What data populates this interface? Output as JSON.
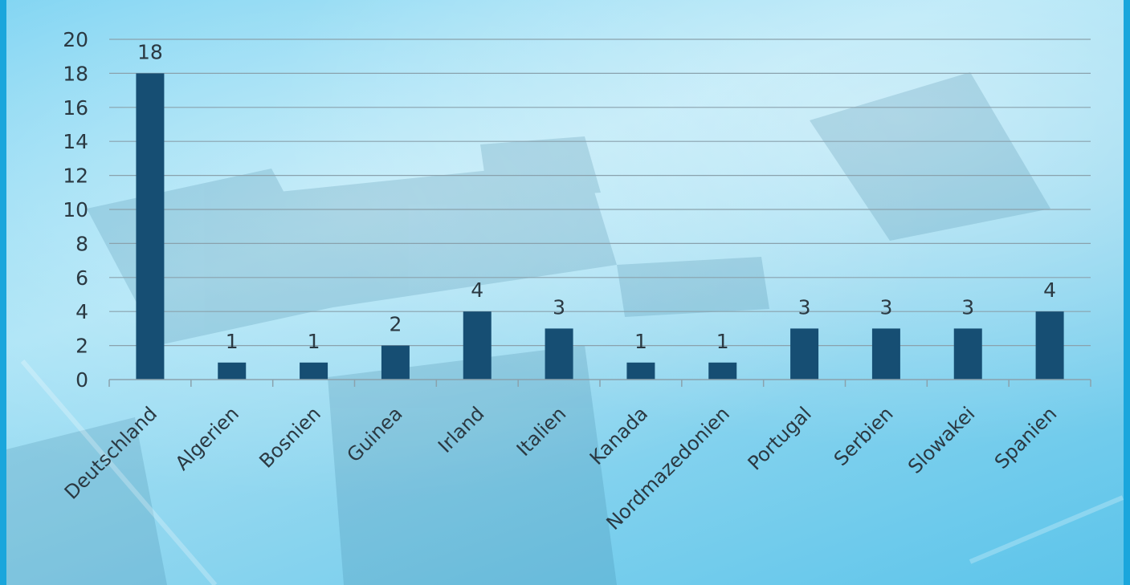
{
  "chart_data": {
    "type": "bar",
    "title": "",
    "xlabel": "",
    "ylabel": "",
    "categories": [
      "Deutschland",
      "Algerien",
      "Bosnien",
      "Guinea",
      "Irland",
      "Italien",
      "Kanada",
      "Nordmazedonien",
      "Portugal",
      "Serbien",
      "Slowakei",
      "Spanien"
    ],
    "values": [
      18,
      1,
      1,
      2,
      4,
      3,
      1,
      1,
      3,
      3,
      3,
      4
    ],
    "ylim": [
      0,
      20
    ],
    "yticks": [
      0,
      2,
      4,
      6,
      8,
      10,
      12,
      14,
      16,
      18,
      20
    ],
    "grid": true,
    "data_labels": true,
    "legend": "none",
    "colors": {
      "bar": "#164e73",
      "grid": "#8aa2ad",
      "text": "#2b3942",
      "frame": "#1aa6dc"
    }
  }
}
